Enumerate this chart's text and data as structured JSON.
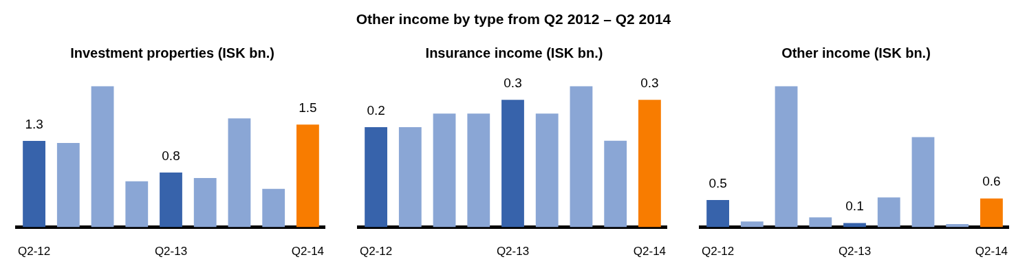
{
  "chart_data": [
    {
      "type": "bar",
      "title": "Investment properties (ISK bn.)",
      "annotations": [
        "Other income by type from Q2 2012 – Q2 2014"
      ],
      "categories": [
        "Q2-12",
        null,
        null,
        null,
        "Q2-13",
        null,
        null,
        null,
        "Q2-14"
      ],
      "values": [
        1.26,
        1.23,
        2.06,
        0.67,
        0.8,
        0.72,
        1.59,
        0.56,
        1.5
      ],
      "colors": [
        "#3763ab",
        "#8aa6d5",
        "#8aa6d5",
        "#8aa6d5",
        "#3763ab",
        "#8aa6d5",
        "#8aa6d5",
        "#8aa6d5",
        "#f87c00"
      ],
      "value_labels": [
        "1.3",
        null,
        null,
        null,
        "0.8",
        null,
        null,
        null,
        "1.5"
      ]
    },
    {
      "type": "bar",
      "title": "Insurance income (ISK bn.)",
      "categories": [
        "Q2-12",
        null,
        null,
        null,
        "Q2-13",
        null,
        null,
        null,
        "Q2-14"
      ],
      "values": [
        0.22,
        0.22,
        0.25,
        0.25,
        0.28,
        0.25,
        0.31,
        0.19,
        0.28
      ],
      "colors": [
        "#3763ab",
        "#8aa6d5",
        "#8aa6d5",
        "#8aa6d5",
        "#3763ab",
        "#8aa6d5",
        "#8aa6d5",
        "#8aa6d5",
        "#f87c00"
      ],
      "value_labels": [
        "0.2",
        null,
        null,
        null,
        "0.3",
        null,
        null,
        null,
        "0.3"
      ]
    },
    {
      "type": "bar",
      "title": "Other income (ISK bn.)",
      "categories": [
        "Q2-12",
        null,
        null,
        null,
        "Q2-13",
        null,
        null,
        null,
        "Q2-14"
      ],
      "values": [
        0.53,
        0.11,
        2.74,
        0.19,
        0.08,
        0.58,
        1.75,
        0.06,
        0.56
      ],
      "colors": [
        "#3763ab",
        "#8aa6d5",
        "#8aa6d5",
        "#8aa6d5",
        "#3763ab",
        "#8aa6d5",
        "#8aa6d5",
        "#8aa6d5",
        "#f87c00"
      ],
      "value_labels": [
        "0.5",
        null,
        null,
        null,
        "0.1",
        null,
        null,
        null,
        "0.6"
      ]
    }
  ]
}
